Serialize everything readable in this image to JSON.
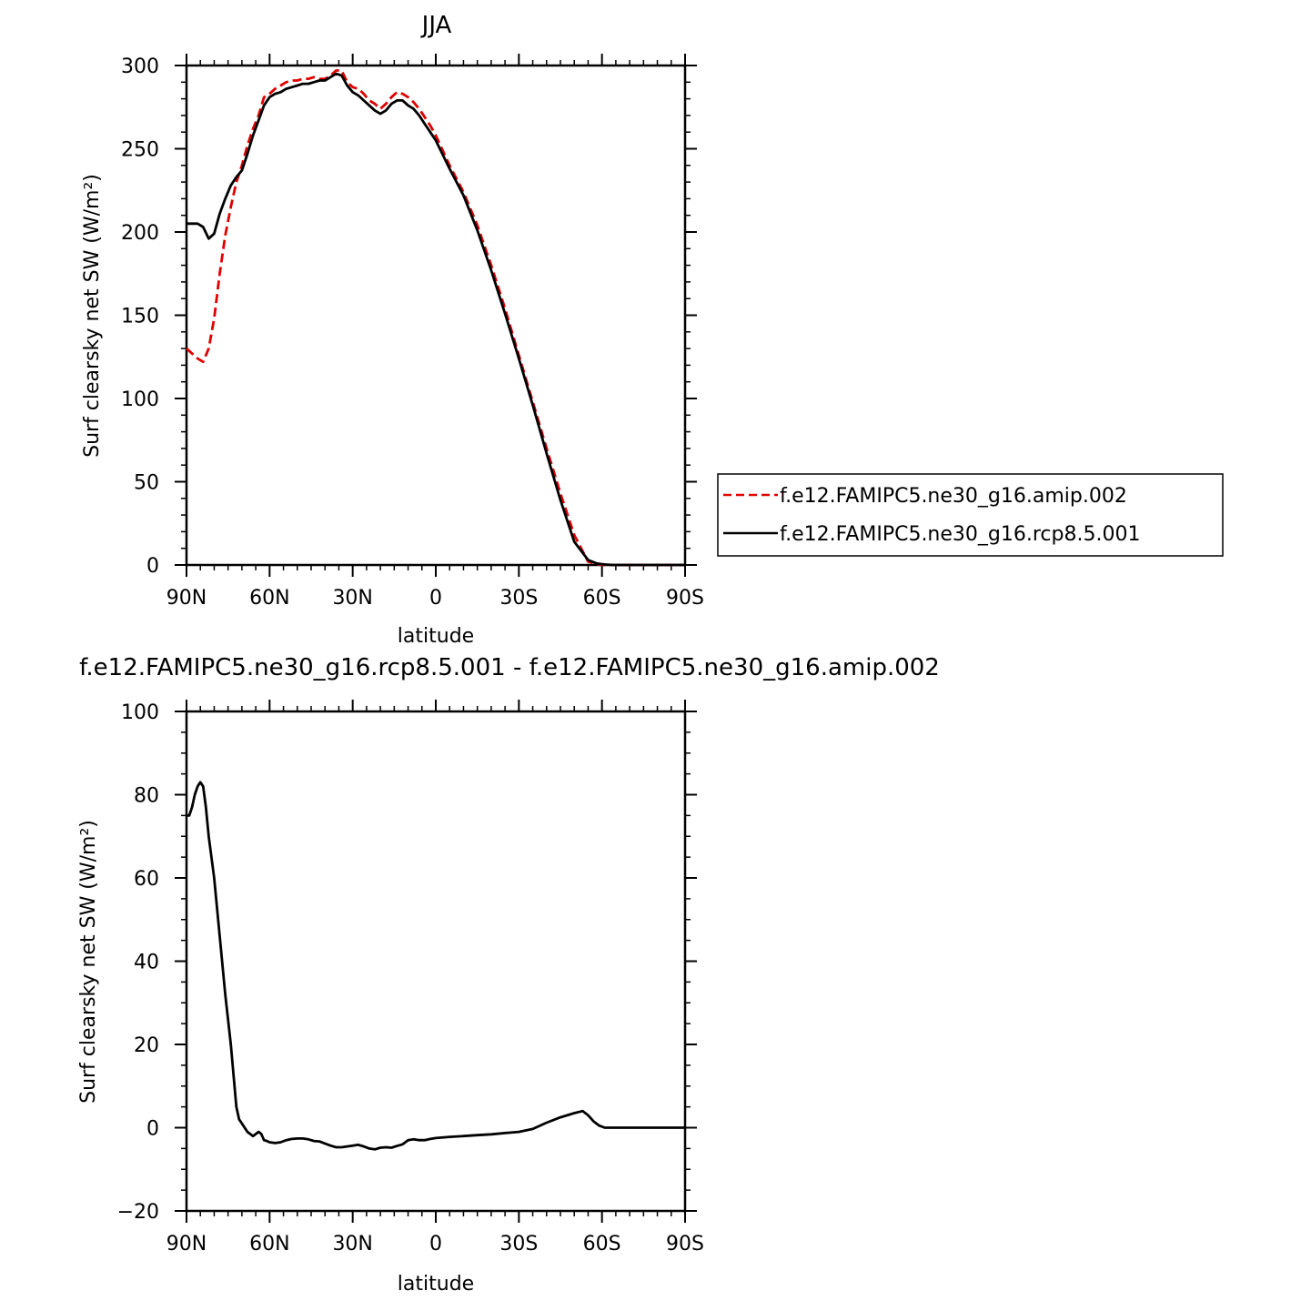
{
  "chart_data": [
    {
      "type": "line",
      "title": "JJA",
      "xlabel": "latitude",
      "ylabel": "Surf clearsky net SW (W/m²)",
      "xlim": [
        90,
        -90
      ],
      "ylim": [
        0,
        300
      ],
      "xticks": [
        {
          "value": 90,
          "label": "90N"
        },
        {
          "value": 60,
          "label": "60N"
        },
        {
          "value": 30,
          "label": "30N"
        },
        {
          "value": 0,
          "label": "0"
        },
        {
          "value": -30,
          "label": "30S"
        },
        {
          "value": -60,
          "label": "60S"
        },
        {
          "value": -90,
          "label": "90S"
        }
      ],
      "yticks": [
        0,
        50,
        100,
        150,
        200,
        250,
        300
      ],
      "legend": {
        "placement": "right"
      },
      "series": [
        {
          "name": "f.e12.FAMIPC5.ne30_g16.amip.002",
          "color": "#e00000",
          "dash": "dashed",
          "x": [
            90,
            88,
            86,
            84,
            82,
            80,
            78,
            76,
            74,
            72,
            70,
            68,
            66,
            64,
            62,
            60,
            58,
            56,
            54,
            52,
            50,
            48,
            46,
            44,
            42,
            40,
            38,
            36,
            34,
            32,
            30,
            28,
            26,
            24,
            22,
            20,
            18,
            16,
            14,
            12,
            10,
            8,
            6,
            4,
            2,
            0,
            -5,
            -10,
            -15,
            -20,
            -25,
            -30,
            -35,
            -40,
            -45,
            -50,
            -55,
            -58,
            -60,
            -62,
            -64,
            -66,
            -68,
            -70,
            -75,
            -80,
            -85,
            -90
          ],
          "y": [
            130,
            127,
            124,
            122,
            130,
            148,
            175,
            198,
            215,
            230,
            240,
            252,
            262,
            270,
            281,
            283,
            286,
            288,
            290,
            291,
            291,
            292,
            292,
            293,
            292,
            292,
            294,
            297,
            297,
            290,
            287,
            286,
            283,
            279,
            277,
            274,
            277,
            281,
            284,
            283,
            281,
            278,
            274,
            269,
            264,
            258,
            240,
            224,
            204,
            180,
            154,
            126,
            98,
            70,
            43,
            18,
            2,
            0.5,
            0.1,
            0,
            0,
            0,
            0,
            0,
            0,
            0,
            0,
            0
          ]
        },
        {
          "name": "f.e12.FAMIPC5.ne30_g16.rcp8.5.001",
          "color": "#000000",
          "dash": "solid",
          "x": [
            90,
            88,
            86,
            84,
            82,
            80,
            78,
            76,
            74,
            72,
            70,
            68,
            66,
            64,
            62,
            60,
            58,
            56,
            54,
            52,
            50,
            48,
            46,
            44,
            42,
            40,
            38,
            36,
            34,
            32,
            30,
            28,
            26,
            24,
            22,
            20,
            18,
            16,
            14,
            12,
            10,
            8,
            6,
            4,
            2,
            0,
            -5,
            -10,
            -15,
            -20,
            -25,
            -30,
            -35,
            -40,
            -45,
            -50,
            -55,
            -58,
            -60,
            -62,
            -64,
            -66,
            -68,
            -70,
            -75,
            -80,
            -85,
            -90
          ],
          "y": [
            205,
            205,
            205,
            203,
            196,
            199,
            211,
            220,
            228,
            233,
            237,
            247,
            258,
            267,
            276,
            281,
            283,
            284,
            286,
            287,
            288,
            289,
            289,
            290,
            291,
            291,
            293,
            295,
            294,
            288,
            284,
            282,
            279,
            276,
            273,
            271,
            273,
            277,
            279,
            279,
            276,
            274,
            270,
            265,
            260,
            255,
            238,
            222,
            201,
            177,
            151,
            124,
            96,
            67,
            39,
            14,
            3,
            1,
            0.5,
            0.2,
            0,
            0,
            0,
            0,
            0,
            0,
            0,
            0
          ]
        }
      ]
    },
    {
      "type": "line",
      "title": "f.e12.FAMIPC5.ne30_g16.rcp8.5.001 - f.e12.FAMIPC5.ne30_g16.amip.002",
      "xlabel": "latitude",
      "ylabel": "Surf clearsky net SW (W/m²)",
      "xlim": [
        90,
        -90
      ],
      "ylim": [
        -20,
        100
      ],
      "xticks": [
        {
          "value": 90,
          "label": "90N"
        },
        {
          "value": 60,
          "label": "60N"
        },
        {
          "value": 30,
          "label": "30N"
        },
        {
          "value": 0,
          "label": "0"
        },
        {
          "value": -30,
          "label": "30S"
        },
        {
          "value": -60,
          "label": "60S"
        },
        {
          "value": -90,
          "label": "90S"
        }
      ],
      "yticks": [
        -20,
        0,
        20,
        40,
        60,
        80,
        100
      ],
      "series": [
        {
          "color": "#000000",
          "dash": "solid",
          "x": [
            90,
            89,
            88,
            87,
            86,
            85,
            84,
            83,
            82,
            80,
            78,
            76,
            74,
            72,
            71,
            70,
            69,
            68,
            66,
            64,
            63,
            62,
            61,
            60,
            58,
            56,
            54,
            52,
            50,
            48,
            46,
            44,
            42,
            40,
            38,
            36,
            34,
            32,
            30,
            28,
            26,
            24,
            22,
            20,
            18,
            16,
            14,
            12,
            10,
            8,
            6,
            4,
            2,
            0,
            -5,
            -10,
            -15,
            -20,
            -25,
            -30,
            -35,
            -40,
            -45,
            -50,
            -53,
            -55,
            -57,
            -59,
            -61,
            -62,
            -63,
            -64,
            -66,
            -68,
            -70,
            -75,
            -80,
            -85,
            -90
          ],
          "y": [
            75,
            75,
            77,
            80,
            82,
            83,
            82,
            77,
            70,
            60,
            46,
            32,
            20,
            5,
            2,
            1,
            0,
            -1,
            -2,
            -1,
            -1.5,
            -3,
            -3.2,
            -3.5,
            -3.7,
            -3.5,
            -3,
            -2.7,
            -2.6,
            -2.6,
            -2.8,
            -3.2,
            -3.3,
            -3.8,
            -4.3,
            -4.7,
            -4.7,
            -4.5,
            -4.3,
            -4.1,
            -4.5,
            -5,
            -5.2,
            -4.8,
            -4.7,
            -4.8,
            -4.4,
            -4,
            -3,
            -2.8,
            -3,
            -3,
            -2.7,
            -2.5,
            -2.2,
            -2,
            -1.8,
            -1.6,
            -1.3,
            -1,
            -0.3,
            1.2,
            2.5,
            3.5,
            4,
            3,
            1.5,
            0.5,
            0,
            0,
            0,
            0,
            0,
            0,
            0,
            0,
            0,
            0,
            0
          ]
        }
      ]
    }
  ]
}
